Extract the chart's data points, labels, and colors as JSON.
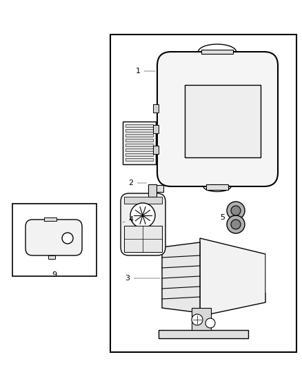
{
  "background_color": "#ffffff",
  "fig_width": 4.38,
  "fig_height": 5.33,
  "dpi": 100,
  "line_color": "#000000"
}
